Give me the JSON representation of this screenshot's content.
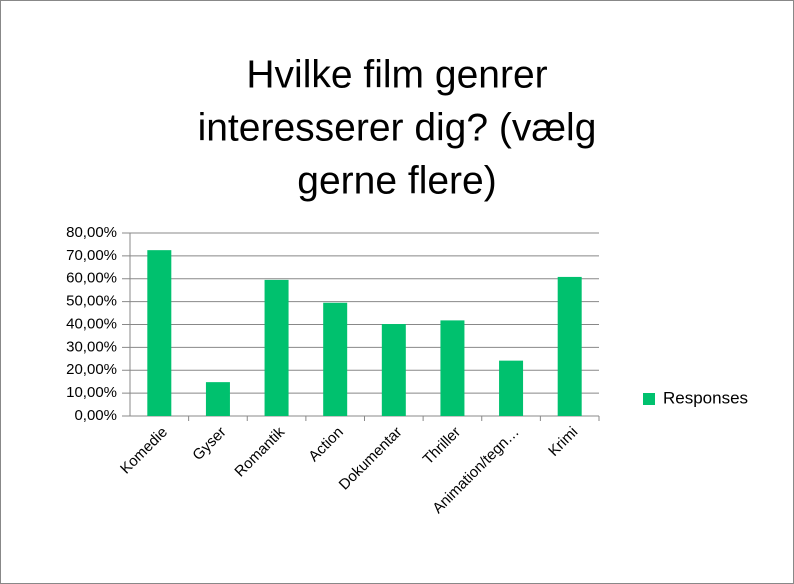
{
  "chart_data": {
    "type": "bar",
    "title": [
      "Hvilke film genrer",
      "interesserer dig? (vælg",
      "gerne flere)"
    ],
    "categories": [
      "Komedie",
      "Gyser",
      "Romantik",
      "Action",
      "Dokumentar",
      "Thriller",
      "Animation/tegn…",
      "Krimi"
    ],
    "series": [
      {
        "name": "Responses",
        "color": "#00c16e",
        "values": [
          72.5,
          14.8,
          59.5,
          49.5,
          40.2,
          41.8,
          24.2,
          60.8
        ]
      }
    ],
    "ylim": [
      0,
      80
    ],
    "yticks": [
      {
        "value": 0,
        "label": "0,00%"
      },
      {
        "value": 10,
        "label": "10,00%"
      },
      {
        "value": 20,
        "label": "20,00%"
      },
      {
        "value": 30,
        "label": "30,00%"
      },
      {
        "value": 40,
        "label": "40,00%"
      },
      {
        "value": 50,
        "label": "50,00%"
      },
      {
        "value": 60,
        "label": "60,00%"
      },
      {
        "value": 70,
        "label": "70,00%"
      },
      {
        "value": 80,
        "label": "80,00%"
      }
    ],
    "grid": true,
    "legend": "right"
  }
}
